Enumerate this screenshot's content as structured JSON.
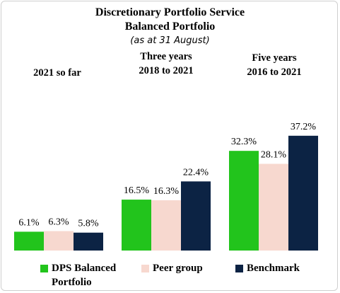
{
  "title_line1": "Discretionary Portfolio Service",
  "title_line2": "Balanced Portfolio",
  "subtitle": "(as at 31 August)",
  "chart_data": {
    "type": "bar",
    "title": "Discretionary Portfolio Service Balanced Portfolio",
    "subtitle": "(as at 31 August)",
    "categories": [
      "2021 so far",
      "Three years 2018 to 2021",
      "Five years 2016 to 2021"
    ],
    "category_lines": [
      [
        "2021 so far"
      ],
      [
        "Three years",
        "2018 to 2021"
      ],
      [
        "Five years",
        "2016 to 2021"
      ]
    ],
    "series": [
      {
        "name": "DPS Balanced Portfolio",
        "legend_lines": [
          "DPS Balanced",
          "Portfolio"
        ],
        "values": [
          6.1,
          16.5,
          32.3
        ],
        "labels": [
          "6.1%",
          "16.5%",
          "32.3%"
        ],
        "color": "#22c41c"
      },
      {
        "name": "Peer group",
        "legend_lines": [
          "Peer group"
        ],
        "values": [
          6.3,
          16.3,
          28.1
        ],
        "labels": [
          "6.3%",
          "16.3%",
          "28.1%"
        ],
        "color": "#f7d8cf"
      },
      {
        "name": "Benchmark",
        "legend_lines": [
          "Benchmark"
        ],
        "values": [
          5.8,
          22.4,
          37.2
        ],
        "labels": [
          "5.8%",
          "22.4%",
          "37.2%"
        ],
        "color": "#0c2344"
      }
    ],
    "legend_position": "bottom",
    "grid": false,
    "ylim": [
      0,
      40
    ]
  }
}
